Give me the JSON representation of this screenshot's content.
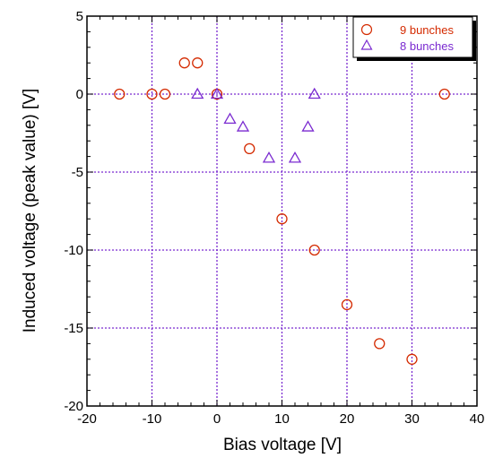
{
  "chart_data": {
    "type": "scatter",
    "xlabel": "Bias voltage [V]",
    "ylabel": "Induced voltage (peak value) [V]",
    "xlim": [
      -20,
      40
    ],
    "ylim": [
      -20,
      5
    ],
    "xticks": [
      -20,
      -10,
      0,
      10,
      20,
      30,
      40
    ],
    "yticks": [
      5,
      0,
      -5,
      -10,
      -15,
      -20
    ],
    "xtick_labels": [
      "-20",
      "-10",
      "0",
      "10",
      "20",
      "30",
      "40"
    ],
    "ytick_labels": [
      "5",
      "0",
      "-5",
      "-10",
      "-15",
      "-20"
    ],
    "grid": true,
    "legend_position": "top-right",
    "series": [
      {
        "name": "9 bunches",
        "marker": "circle",
        "color": "#d42a00",
        "points": [
          {
            "x": -15,
            "y": 0
          },
          {
            "x": -10,
            "y": 0
          },
          {
            "x": -8,
            "y": 0
          },
          {
            "x": -5,
            "y": 2
          },
          {
            "x": -3,
            "y": 2
          },
          {
            "x": 0,
            "y": 0
          },
          {
            "x": 5,
            "y": -3.5
          },
          {
            "x": 10,
            "y": -8
          },
          {
            "x": 15,
            "y": -10
          },
          {
            "x": 20,
            "y": -13.5
          },
          {
            "x": 25,
            "y": -16
          },
          {
            "x": 30,
            "y": -17
          },
          {
            "x": 35,
            "y": 0
          }
        ]
      },
      {
        "name": "8 bunches",
        "marker": "triangle",
        "color": "#7a2ad0",
        "points": [
          {
            "x": -3,
            "y": 0
          },
          {
            "x": 0,
            "y": 0
          },
          {
            "x": 2,
            "y": -1.6
          },
          {
            "x": 4,
            "y": -2.1
          },
          {
            "x": 8,
            "y": -4.1
          },
          {
            "x": 12,
            "y": -4.1
          },
          {
            "x": 14,
            "y": -2.1
          },
          {
            "x": 15,
            "y": 0
          }
        ]
      }
    ]
  }
}
